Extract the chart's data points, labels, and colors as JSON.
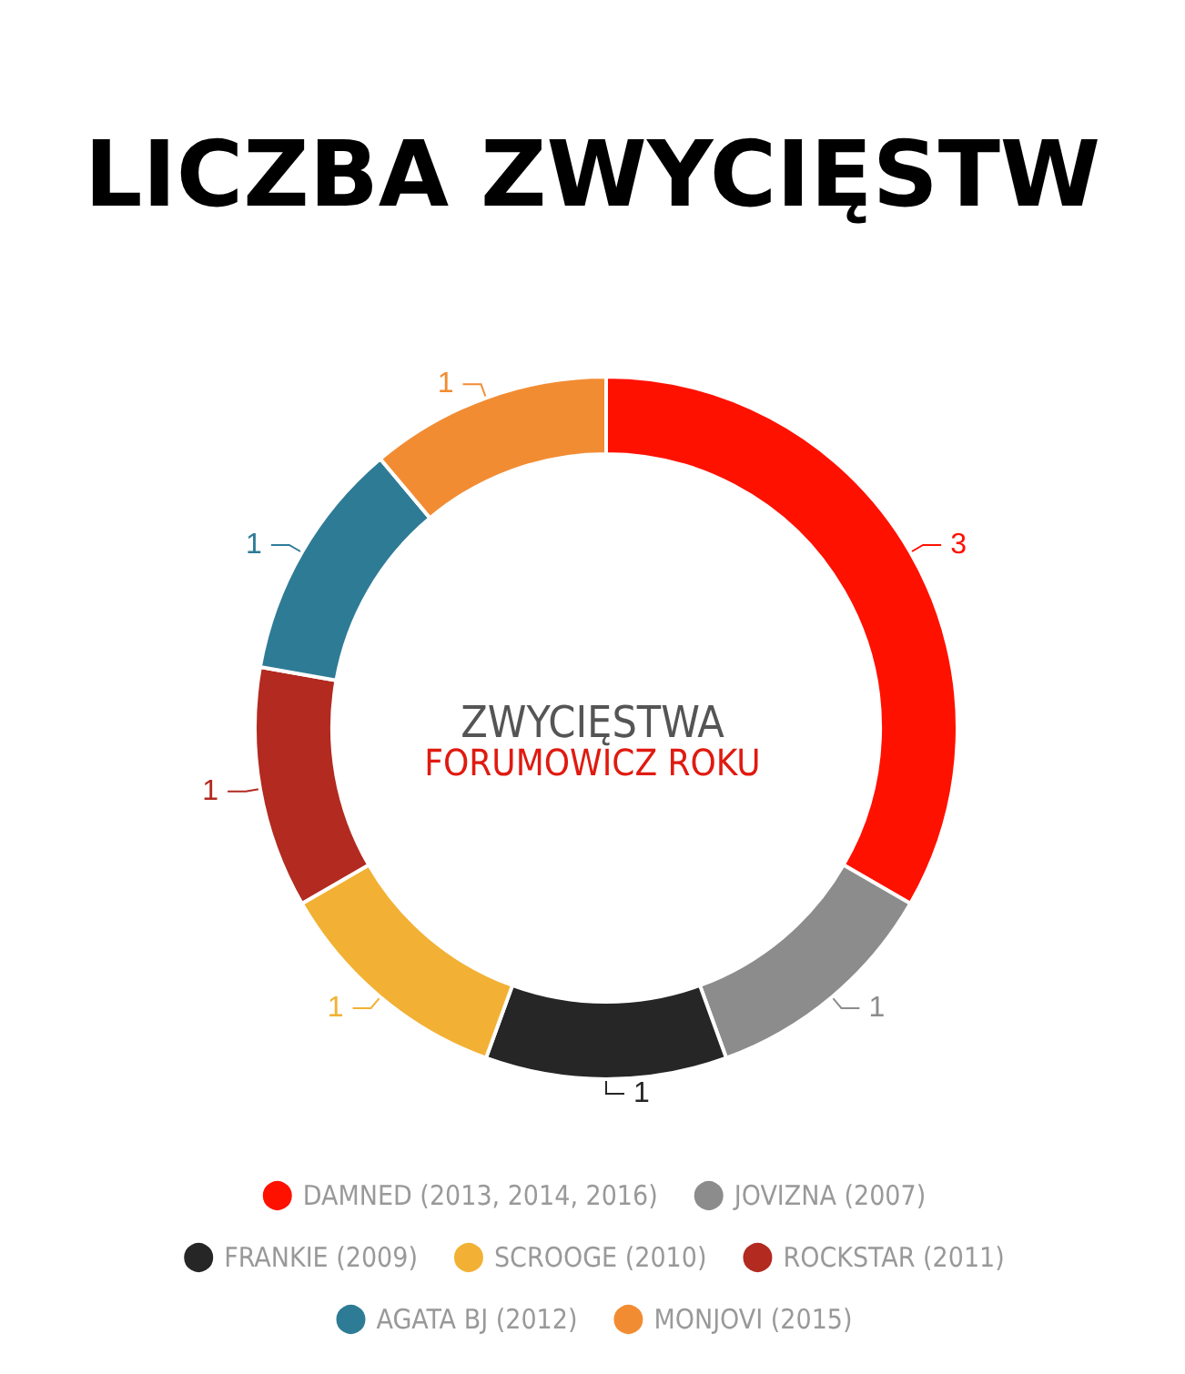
{
  "chart_data": {
    "type": "donut",
    "title": "LICZBA ZWYCIĘSTW",
    "annotations": [
      "ZWYCIĘSTWA",
      "FORUMOWICZ ROKU"
    ],
    "categories": [
      "DAMNED (2013, 2014, 2016)",
      "JOVIZNA (2007)",
      "FRANKIE (2009)",
      "SCROOGE (2010)",
      "ROCKSTAR (2011)",
      "AGATA BJ (2012)",
      "MONJOVI (2015)"
    ],
    "values": [
      3,
      1,
      1,
      1,
      1,
      1,
      1
    ],
    "colors": [
      "#ff1100",
      "#8c8c8c",
      "#262626",
      "#f2b134",
      "#b22a20",
      "#2e7b96",
      "#f28c33"
    ],
    "data_labels": true,
    "legend": "bottom"
  }
}
